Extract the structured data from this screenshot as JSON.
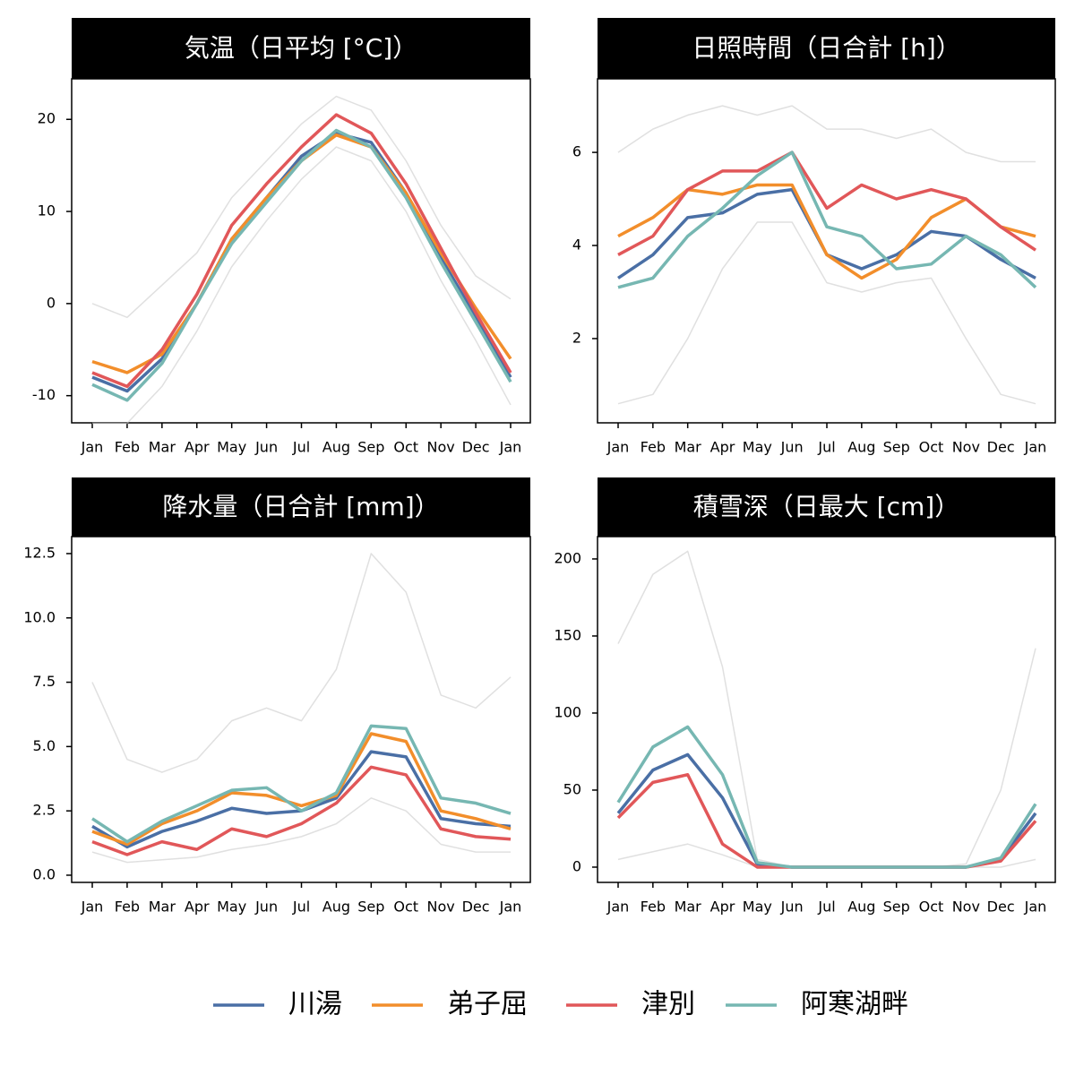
{
  "chart_data": [
    {
      "type": "line",
      "title": "気温（日平均 [°C]）",
      "categories": [
        "Jan",
        "Feb",
        "Mar",
        "Apr",
        "May",
        "Jun",
        "Jul",
        "Aug",
        "Sep",
        "Oct",
        "Nov",
        "Dec",
        "Jan"
      ],
      "ylim": [
        -12.95,
        24.4
      ],
      "yticks": [
        -10,
        0,
        10,
        20
      ],
      "series": [
        {
          "color": "#cccccc",
          "values": [
            0,
            -1.5,
            2,
            5.5,
            11.5,
            15.5,
            19.5,
            22.5,
            21,
            15.5,
            8.5,
            3,
            0.5
          ]
        },
        {
          "color": "#cccccc",
          "values": [
            -13,
            -13,
            -9,
            -3,
            4,
            9,
            13.5,
            17,
            15.5,
            10,
            2.5,
            -4,
            -11
          ]
        },
        {
          "name": "川湯",
          "color": "#4a6fa5",
          "values": [
            -8,
            -9.5,
            -6,
            0,
            7,
            11.5,
            16,
            18.5,
            17.5,
            12,
            5,
            -1.5,
            -8
          ]
        },
        {
          "name": "弟子屈",
          "color": "#f28e2b",
          "values": [
            -6.3,
            -7.5,
            -5.5,
            0,
            7,
            11.5,
            15.5,
            18.3,
            17,
            12,
            5.5,
            -0.5,
            -6
          ]
        },
        {
          "name": "津別",
          "color": "#e15759",
          "values": [
            -7.5,
            -9,
            -5,
            1,
            8.5,
            13,
            17,
            20.5,
            18.5,
            13,
            6,
            -1,
            -7.5
          ]
        },
        {
          "name": "阿寒湖畔",
          "color": "#76b7b2",
          "values": [
            -8.8,
            -10.5,
            -6.5,
            0,
            6.5,
            11,
            15.5,
            18.8,
            17,
            11.5,
            4.5,
            -2,
            -8.5
          ]
        }
      ]
    },
    {
      "type": "line",
      "title": "日照時間（日合計 [h]）",
      "categories": [
        "Jan",
        "Feb",
        "Mar",
        "Apr",
        "May",
        "Jun",
        "Jul",
        "Aug",
        "Sep",
        "Oct",
        "Nov",
        "Dec",
        "Jan"
      ],
      "ylim": [
        0.19,
        7.58
      ],
      "yticks": [
        2,
        4,
        6
      ],
      "series": [
        {
          "color": "#cccccc",
          "values": [
            6,
            6.5,
            6.8,
            7,
            6.8,
            7,
            6.5,
            6.5,
            6.3,
            6.5,
            6,
            5.8,
            5.8
          ]
        },
        {
          "color": "#cccccc",
          "values": [
            0.6,
            0.8,
            2,
            3.5,
            4.5,
            4.5,
            3.2,
            3,
            3.2,
            3.3,
            2,
            0.8,
            0.6
          ]
        },
        {
          "name": "川湯",
          "color": "#4a6fa5",
          "values": [
            3.3,
            3.8,
            4.6,
            4.7,
            5.1,
            5.2,
            3.8,
            3.5,
            3.8,
            4.3,
            4.2,
            3.7,
            3.3
          ]
        },
        {
          "name": "弟子屈",
          "color": "#f28e2b",
          "values": [
            4.2,
            4.6,
            5.2,
            5.1,
            5.3,
            5.3,
            3.8,
            3.3,
            3.7,
            4.6,
            5.0,
            4.4,
            4.2
          ]
        },
        {
          "name": "津別",
          "color": "#e15759",
          "values": [
            3.8,
            4.2,
            5.2,
            5.6,
            5.6,
            6.0,
            4.8,
            5.3,
            5.0,
            5.2,
            5.0,
            4.4,
            3.9
          ]
        },
        {
          "name": "阿寒湖畔",
          "color": "#76b7b2",
          "values": [
            3.1,
            3.3,
            4.2,
            4.8,
            5.5,
            6.0,
            4.4,
            4.2,
            3.5,
            3.6,
            4.2,
            3.8,
            3.1
          ]
        }
      ]
    },
    {
      "type": "line",
      "title": "降水量（日合計 [mm]）",
      "categories": [
        "Jan",
        "Feb",
        "Mar",
        "Apr",
        "May",
        "Jun",
        "Jul",
        "Aug",
        "Sep",
        "Oct",
        "Nov",
        "Dec",
        "Jan"
      ],
      "ylim": [
        -0.28,
        13.16
      ],
      "yticks": [
        {
          "value": 0,
          "label": "0.0"
        },
        2.5,
        {
          "value": 5,
          "label": "5.0"
        },
        7.5,
        {
          "value": 10,
          "label": "10.0"
        },
        12.5
      ],
      "series": [
        {
          "color": "#cccccc",
          "values": [
            7.5,
            4.5,
            4,
            4.5,
            6,
            6.5,
            6,
            8,
            12.5,
            11,
            7,
            6.5,
            7.7
          ]
        },
        {
          "color": "#cccccc",
          "values": [
            0.9,
            0.5,
            0.6,
            0.7,
            1.0,
            1.2,
            1.5,
            2,
            3,
            2.5,
            1.2,
            0.9,
            0.9
          ]
        },
        {
          "name": "川湯",
          "color": "#4a6fa5",
          "values": [
            1.9,
            1.1,
            1.7,
            2.1,
            2.6,
            2.4,
            2.5,
            3.0,
            4.8,
            4.6,
            2.2,
            2.0,
            1.9
          ]
        },
        {
          "name": "弟子屈",
          "color": "#f28e2b",
          "values": [
            1.7,
            1.2,
            2.0,
            2.5,
            3.2,
            3.1,
            2.7,
            3.1,
            5.5,
            5.2,
            2.5,
            2.2,
            1.8
          ]
        },
        {
          "name": "津別",
          "color": "#e15759",
          "values": [
            1.3,
            0.8,
            1.3,
            1.0,
            1.8,
            1.5,
            2.0,
            2.8,
            4.2,
            3.9,
            1.8,
            1.5,
            1.4
          ]
        },
        {
          "name": "阿寒湖畔",
          "color": "#76b7b2",
          "values": [
            2.2,
            1.3,
            2.1,
            2.7,
            3.3,
            3.4,
            2.5,
            3.2,
            5.8,
            5.7,
            3.0,
            2.8,
            2.4
          ]
        }
      ]
    },
    {
      "type": "line",
      "title": "積雪深（日最大 [cm]）",
      "categories": [
        "Jan",
        "Feb",
        "Mar",
        "Apr",
        "May",
        "Jun",
        "Jul",
        "Aug",
        "Sep",
        "Oct",
        "Nov",
        "Dec",
        "Jan"
      ],
      "ylim": [
        -9.9,
        214.5
      ],
      "yticks": [
        0,
        50,
        100,
        150,
        200
      ],
      "series": [
        {
          "color": "#cccccc",
          "values": [
            145,
            190,
            205,
            130,
            5,
            0,
            0,
            0,
            0,
            0,
            2,
            50,
            142
          ]
        },
        {
          "color": "#cccccc",
          "values": [
            5,
            10,
            15,
            8,
            0,
            0,
            0,
            0,
            0,
            0,
            0,
            0,
            5
          ]
        },
        {
          "name": "川湯",
          "color": "#4a6fa5",
          "values": [
            35,
            63,
            73,
            45,
            2,
            0,
            0,
            0,
            0,
            0,
            0,
            5,
            35
          ]
        },
        {
          "name": "弟子屈",
          "color": "#f28e2b",
          "values": [
            null,
            null,
            null,
            null,
            null,
            null,
            null,
            null,
            null,
            null,
            null,
            null,
            null
          ]
        },
        {
          "name": "津別",
          "color": "#e15759",
          "values": [
            32,
            55,
            60,
            15,
            0,
            0,
            0,
            0,
            0,
            0,
            0,
            4,
            30
          ]
        },
        {
          "name": "阿寒湖畔",
          "color": "#76b7b2",
          "values": [
            42,
            78,
            91,
            60,
            3,
            0,
            0,
            0,
            0,
            0,
            0,
            6,
            41
          ]
        }
      ]
    }
  ]
}
